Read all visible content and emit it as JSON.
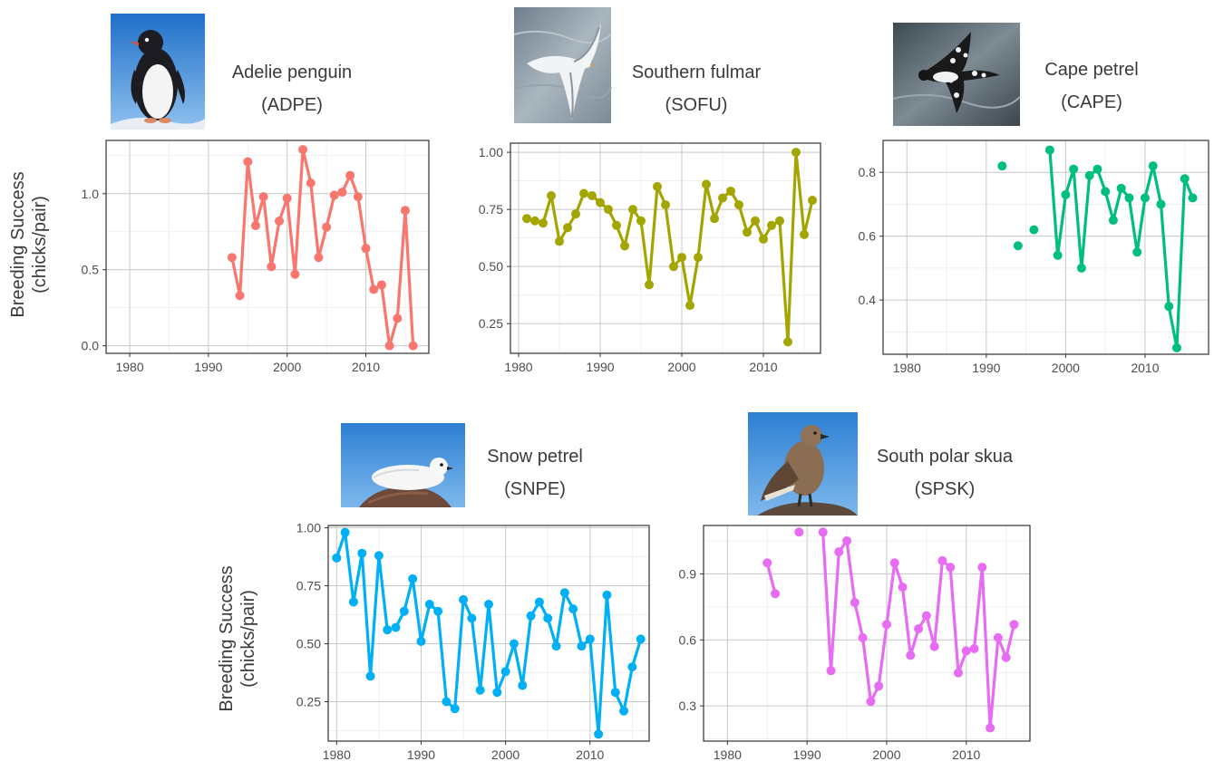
{
  "ylabel": {
    "line1": "Breeding Success",
    "line2": "(chicks/pair)"
  },
  "chart_data": [
    {
      "type": "line",
      "species": "Adelie penguin",
      "code": "(ADPE)",
      "color": "#F8766D",
      "photo": "adelie-penguin-photo",
      "xlim": [
        1977,
        2018
      ],
      "ylim": [
        -0.05,
        1.35
      ],
      "xticks": [
        1980,
        1990,
        2000,
        2010
      ],
      "yticks": [
        0.0,
        0.5,
        1.0
      ],
      "ytick_labels": [
        "0.0",
        "0.5",
        "1.0"
      ],
      "x": [
        1993,
        1994,
        1995,
        1996,
        1997,
        1998,
        1999,
        2000,
        2001,
        2002,
        2003,
        2004,
        2005,
        2006,
        2007,
        2008,
        2009,
        2010,
        2011,
        2012,
        2013,
        2014,
        2015,
        2016
      ],
      "y": [
        0.58,
        0.33,
        1.21,
        0.79,
        0.98,
        0.52,
        0.82,
        0.97,
        0.47,
        1.29,
        1.07,
        0.58,
        0.78,
        0.99,
        1.01,
        1.12,
        0.98,
        0.64,
        0.37,
        0.4,
        0.0,
        0.18,
        0.89,
        0.0
      ]
    },
    {
      "type": "line",
      "species": "Southern fulmar",
      "code": "(SOFU)",
      "color": "#A3A500",
      "photo": "southern-fulmar-photo",
      "xlim": [
        1979,
        2017
      ],
      "ylim": [
        0.12,
        1.04
      ],
      "xticks": [
        1980,
        1990,
        2000,
        2010
      ],
      "yticks": [
        0.25,
        0.5,
        0.75,
        1.0
      ],
      "ytick_labels": [
        "0.25",
        "0.50",
        "0.75",
        "1.00"
      ],
      "x": [
        1981,
        1982,
        1983,
        1984,
        1985,
        1986,
        1987,
        1988,
        1989,
        1990,
        1991,
        1992,
        1993,
        1994,
        1995,
        1996,
        1997,
        1998,
        1999,
        2000,
        2001,
        2002,
        2003,
        2004,
        2005,
        2006,
        2007,
        2008,
        2009,
        2010,
        2011,
        2012,
        2013,
        2014,
        2015,
        2016
      ],
      "y": [
        0.71,
        0.7,
        0.69,
        0.81,
        0.61,
        0.67,
        0.73,
        0.82,
        0.81,
        0.78,
        0.75,
        0.68,
        0.59,
        0.75,
        0.7,
        0.42,
        0.85,
        0.77,
        0.5,
        0.54,
        0.33,
        0.54,
        0.86,
        0.71,
        0.8,
        0.83,
        0.77,
        0.65,
        0.7,
        0.62,
        0.68,
        0.7,
        0.17,
        1.0,
        0.64,
        0.79
      ]
    },
    {
      "type": "line",
      "species": "Cape petrel",
      "code": "(CAPE)",
      "color": "#00BF7D",
      "photo": "cape-petrel-photo",
      "xlim": [
        1977,
        2018
      ],
      "ylim": [
        0.23,
        0.9
      ],
      "xticks": [
        1980,
        1990,
        2000,
        2010
      ],
      "yticks": [
        0.4,
        0.6,
        0.8
      ],
      "ytick_labels": [
        "0.4",
        "0.6",
        "0.8"
      ],
      "x": [
        1992,
        1994,
        1996,
        1998,
        1999,
        2000,
        2001,
        2002,
        2003,
        2004,
        2005,
        2006,
        2007,
        2008,
        2009,
        2010,
        2011,
        2012,
        2013,
        2014,
        2015,
        2016
      ],
      "y": [
        0.82,
        0.57,
        0.62,
        0.87,
        0.54,
        0.73,
        0.81,
        0.5,
        0.79,
        0.81,
        0.74,
        0.65,
        0.75,
        0.72,
        0.55,
        0.72,
        0.82,
        0.7,
        0.38,
        0.25,
        0.78,
        0.72
      ],
      "segments": [
        [
          1998,
          2016
        ]
      ]
    },
    {
      "type": "line",
      "species": "Snow petrel",
      "code": "(SNPE)",
      "color": "#00B0F6",
      "photo": "snow-petrel-photo",
      "xlim": [
        1979,
        2017
      ],
      "ylim": [
        0.08,
        1.01
      ],
      "xticks": [
        1980,
        1990,
        2000,
        2010
      ],
      "yticks": [
        0.25,
        0.5,
        0.75,
        1.0
      ],
      "ytick_labels": [
        "0.25",
        "0.50",
        "0.75",
        "1.00"
      ],
      "x": [
        1980,
        1981,
        1982,
        1983,
        1984,
        1985,
        1986,
        1987,
        1988,
        1989,
        1990,
        1991,
        1992,
        1993,
        1994,
        1995,
        1996,
        1997,
        1998,
        1999,
        2000,
        2001,
        2002,
        2003,
        2004,
        2005,
        2006,
        2007,
        2008,
        2009,
        2010,
        2011,
        2012,
        2013,
        2014,
        2015,
        2016
      ],
      "y": [
        0.87,
        0.98,
        0.68,
        0.89,
        0.36,
        0.88,
        0.56,
        0.57,
        0.64,
        0.78,
        0.51,
        0.67,
        0.64,
        0.25,
        0.22,
        0.69,
        0.61,
        0.3,
        0.67,
        0.29,
        0.38,
        0.5,
        0.32,
        0.62,
        0.68,
        0.61,
        0.49,
        0.72,
        0.65,
        0.49,
        0.52,
        0.11,
        0.71,
        0.29,
        0.21,
        0.4,
        0.52
      ]
    },
    {
      "type": "line",
      "species": "South polar skua",
      "code": "(SPSK)",
      "color": "#E76BF3",
      "photo": "south-polar-skua-photo",
      "xlim": [
        1977,
        2018
      ],
      "ylim": [
        0.14,
        1.12
      ],
      "xticks": [
        1980,
        1990,
        2000,
        2010
      ],
      "yticks": [
        0.3,
        0.6,
        0.9
      ],
      "ytick_labels": [
        "0.3",
        "0.6",
        "0.9"
      ],
      "x": [
        1985,
        1986,
        1989,
        1992,
        1993,
        1994,
        1995,
        1996,
        1997,
        1998,
        1999,
        2000,
        2001,
        2002,
        2003,
        2004,
        2005,
        2006,
        2007,
        2008,
        2009,
        2010,
        2011,
        2012,
        2013,
        2014,
        2015,
        2016
      ],
      "y": [
        0.95,
        0.81,
        1.09,
        1.09,
        0.46,
        1.0,
        1.05,
        0.77,
        0.61,
        0.32,
        0.39,
        0.67,
        0.95,
        0.84,
        0.53,
        0.65,
        0.71,
        0.57,
        0.96,
        0.93,
        0.45,
        0.55,
        0.56,
        0.93,
        0.2,
        0.61,
        0.52,
        0.67
      ],
      "segments": [
        [
          1985,
          1986
        ],
        [
          1992,
          2016
        ]
      ]
    }
  ]
}
